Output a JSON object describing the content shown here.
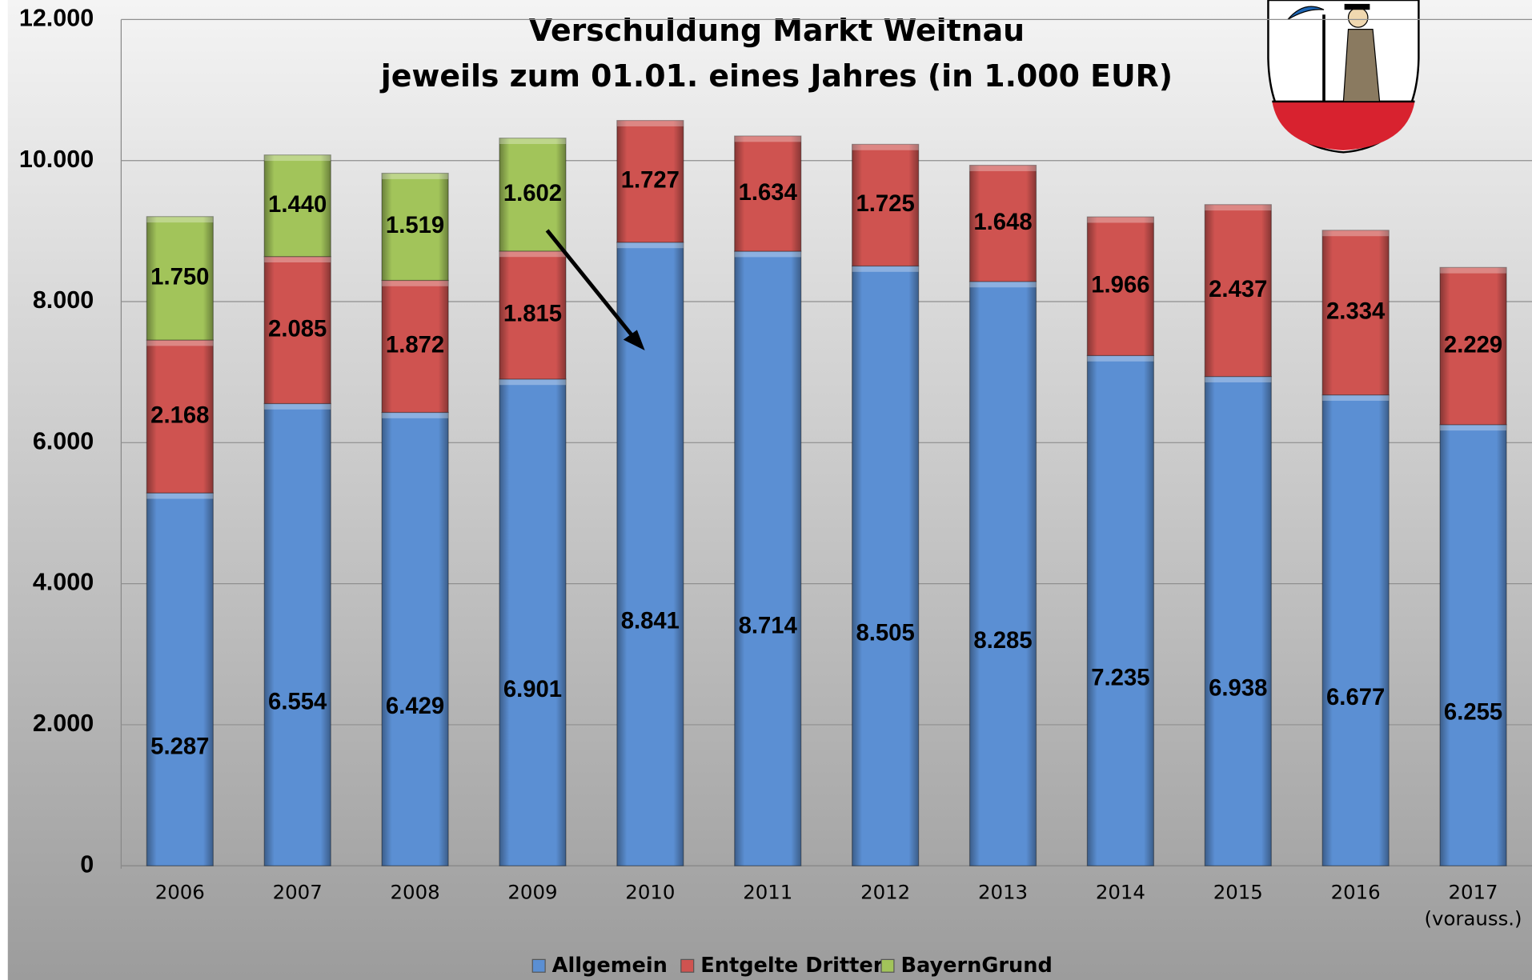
{
  "chart_data": {
    "type": "stacked_bar",
    "title": "Verschuldung  Markt Weitnau",
    "subtitle": "jeweils zum 01.01. eines Jahres (in 1.000 EUR)",
    "categories": [
      "2006",
      "2007",
      "2008",
      "2009",
      "2010",
      "2011",
      "2012",
      "2013",
      "2014",
      "2015",
      "2016",
      "2017"
    ],
    "category_note": "(vorauss.)",
    "series": [
      {
        "name": "Allgemein",
        "color": "#5b8fd3",
        "values": [
          5287,
          6554,
          6429,
          6901,
          8841,
          8714,
          8505,
          8285,
          7235,
          6938,
          6677,
          6255
        ],
        "value_labels": [
          "5.287",
          "6.554",
          "6.429",
          "6.901",
          "8.841",
          "8.714",
          "8.505",
          "8.285",
          "7.235",
          "6.938",
          "6.677",
          "6.255"
        ]
      },
      {
        "name": "Entgelte Dritter",
        "color": "#cf5350",
        "values": [
          2168,
          2085,
          1872,
          1815,
          1727,
          1634,
          1725,
          1648,
          1966,
          2437,
          2334,
          2229
        ],
        "value_labels": [
          "2.168",
          "2.085",
          "1.872",
          "1.815",
          "1.727",
          "1.634",
          "1.725",
          "1.648",
          "1.966",
          "2.437",
          "2.334",
          "2.229"
        ]
      },
      {
        "name": "BayernGrund",
        "color": "#a2c45a",
        "values": [
          1750,
          1440,
          1519,
          1602,
          null,
          null,
          null,
          null,
          null,
          null,
          null,
          null
        ],
        "value_labels": [
          "1.750",
          "1.440",
          "1.519",
          "1.602",
          null,
          null,
          null,
          null,
          null,
          null,
          null,
          null
        ]
      }
    ],
    "ylim": [
      0,
      12000
    ],
    "yticks": [
      0,
      {
        "value": 2000,
        "label": "2.000"
      },
      {
        "value": 4000,
        "label": "4.000"
      },
      {
        "value": 6000,
        "label": "6.000"
      },
      {
        "value": 8000,
        "label": "8.000"
      },
      {
        "value": 10000,
        "label": "10.000"
      },
      {
        "value": 12000,
        "label": "12.000"
      }
    ],
    "grid": true,
    "legend": "bottom"
  }
}
